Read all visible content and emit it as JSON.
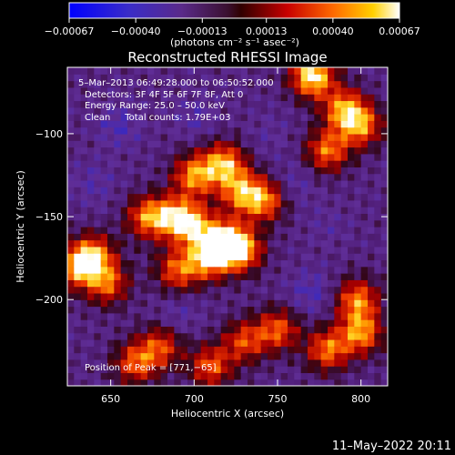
{
  "chart_data": {
    "type": "heatmap",
    "title": "Reconstructed RHESSI Image",
    "xlabel": "Heliocentric X (arcsec)",
    "ylabel": "Heliocentric Y (arcsec)",
    "xlim": [
      624,
      816
    ],
    "ylim": [
      -252,
      -60
    ],
    "x_ticks": [
      650,
      700,
      750,
      800
    ],
    "x_tick_labels": [
      "650",
      "700",
      "750",
      "800"
    ],
    "y_ticks": [
      -100,
      -150,
      -200
    ],
    "y_tick_labels": [
      "−100",
      "−150",
      "−200"
    ],
    "colorbar": {
      "units": "(photons cm⁻² s⁻¹ asec⁻²)",
      "range": [
        -0.00067,
        0.00067
      ],
      "ticks": [
        -0.00067,
        -0.0004,
        -0.00013,
        0.00013,
        0.0004,
        0.00067
      ],
      "tick_labels": [
        "−0.00067",
        "−0.00040",
        "−0.00013",
        "0.00013",
        "0.00040",
        "0.00067"
      ]
    },
    "annotations": [
      "5–Mar–2013 06:49:28.000 to 06:50:52.000",
      "Detectors: 3F 4F 5F 6F 7F 8F, Att 0",
      "Energy Range: 25.0 – 50.0 keV",
      "Clean     Total counts: 1.79E+03"
    ],
    "peak_label": "Position of Peak = [771,−65]",
    "peak_position": [
      771,
      -65
    ],
    "bright_sources": [
      {
        "x": 700,
        "y": -125,
        "v": 0.00045
      },
      {
        "x": 718,
        "y": -118,
        "v": 0.0005
      },
      {
        "x": 728,
        "y": -135,
        "v": 0.0004
      },
      {
        "x": 742,
        "y": -140,
        "v": 0.0004
      },
      {
        "x": 688,
        "y": -150,
        "v": 0.00042
      },
      {
        "x": 672,
        "y": -150,
        "v": 0.0004
      },
      {
        "x": 700,
        "y": -155,
        "v": 0.0004
      },
      {
        "x": 718,
        "y": -165,
        "v": 0.00055
      },
      {
        "x": 728,
        "y": -170,
        "v": 0.0005
      },
      {
        "x": 708,
        "y": -175,
        "v": 0.00045
      },
      {
        "x": 690,
        "y": -182,
        "v": 0.00035
      },
      {
        "x": 640,
        "y": -173,
        "v": 0.0004
      },
      {
        "x": 630,
        "y": -180,
        "v": 0.00045
      },
      {
        "x": 648,
        "y": -190,
        "v": 0.00035
      },
      {
        "x": 771,
        "y": -65,
        "v": 0.00067
      },
      {
        "x": 790,
        "y": -85,
        "v": 0.00045
      },
      {
        "x": 800,
        "y": -95,
        "v": 0.0004
      },
      {
        "x": 780,
        "y": -110,
        "v": 0.0004
      },
      {
        "x": 798,
        "y": -200,
        "v": 0.00042
      },
      {
        "x": 800,
        "y": -220,
        "v": 0.00045
      },
      {
        "x": 780,
        "y": -230,
        "v": 0.0004
      },
      {
        "x": 750,
        "y": -218,
        "v": 0.00035
      },
      {
        "x": 730,
        "y": -225,
        "v": 0.0003
      },
      {
        "x": 710,
        "y": -240,
        "v": 0.00035
      },
      {
        "x": 665,
        "y": -238,
        "v": 0.00035
      },
      {
        "x": 680,
        "y": -228,
        "v": 0.0003
      }
    ],
    "negative_sources": [
      {
        "x": 655,
        "y": -95,
        "v": -0.00035
      },
      {
        "x": 760,
        "y": -130,
        "v": -0.0003
      },
      {
        "x": 770,
        "y": -195,
        "v": -0.00035
      },
      {
        "x": 690,
        "y": -210,
        "v": -0.0003
      },
      {
        "x": 640,
        "y": -130,
        "v": -0.0003
      },
      {
        "x": 745,
        "y": -100,
        "v": -0.00025
      },
      {
        "x": 700,
        "y": -90,
        "v": -0.0003
      },
      {
        "x": 780,
        "y": -155,
        "v": -0.00025
      }
    ],
    "background": -0.00018
  },
  "footer": {
    "date_stamp": "11–May–2022 20:11"
  }
}
